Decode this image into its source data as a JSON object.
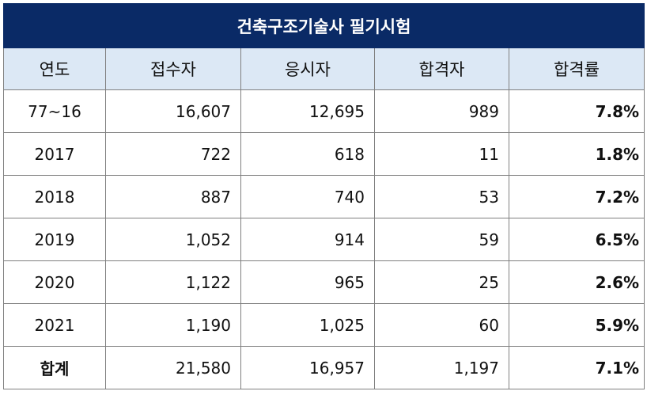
{
  "table": {
    "title": "건축구조기술사 필기시험",
    "headers": [
      "연도",
      "접수자",
      "응시자",
      "합격자",
      "합격률"
    ],
    "rows": [
      [
        "77~16",
        "16,607",
        "12,695",
        "989",
        "7.8%"
      ],
      [
        "2017",
        "722",
        "618",
        "11",
        "1.8%"
      ],
      [
        "2018",
        "887",
        "740",
        "53",
        "7.2%"
      ],
      [
        "2019",
        "1,052",
        "914",
        "59",
        "6.5%"
      ],
      [
        "2020",
        "1,122",
        "965",
        "25",
        "2.6%"
      ],
      [
        "2021",
        "1,190",
        "1,025",
        "60",
        "5.9%"
      ]
    ],
    "total": [
      "합계",
      "21,580",
      "16,957",
      "1,197",
      "7.1%"
    ]
  }
}
